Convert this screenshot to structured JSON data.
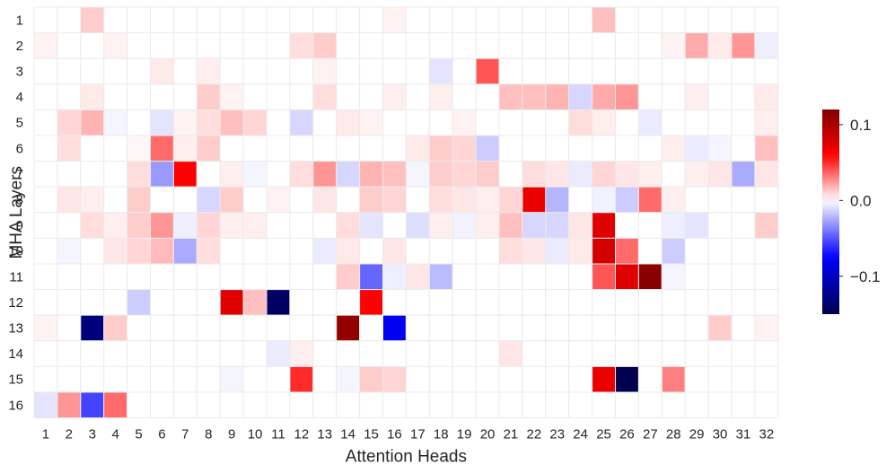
{
  "chart_data": {
    "type": "heatmap",
    "title": "",
    "xlabel": "Attention Heads",
    "ylabel": "MHA Layers",
    "x_categories": [
      "1",
      "2",
      "3",
      "4",
      "5",
      "6",
      "7",
      "8",
      "9",
      "10",
      "11",
      "12",
      "13",
      "14",
      "15",
      "16",
      "17",
      "18",
      "19",
      "20",
      "21",
      "22",
      "23",
      "24",
      "25",
      "26",
      "27",
      "28",
      "29",
      "30",
      "31",
      "32"
    ],
    "y_categories": [
      "1",
      "2",
      "3",
      "4",
      "5",
      "6",
      "7",
      "8",
      "9",
      "10",
      "11",
      "12",
      "13",
      "14",
      "15",
      "16"
    ],
    "colormap": "seismic",
    "colorbar": {
      "vmin": -0.15,
      "vmax": 0.12,
      "ticks": [
        -0.1,
        0.0,
        0.1
      ],
      "tick_labels": [
        "−0.1",
        "0.0",
        "0.1"
      ],
      "position": "right"
    },
    "grid": true,
    "values": [
      [
        0,
        0,
        0.012,
        0,
        0,
        0,
        0,
        0,
        0,
        0,
        0,
        0,
        0,
        0,
        0,
        0.003,
        0,
        0,
        0,
        0,
        0,
        0,
        0,
        0,
        0.015,
        0,
        0,
        0,
        0,
        0,
        0,
        0
      ],
      [
        0.003,
        0,
        0,
        0.003,
        0,
        0,
        0,
        0,
        0,
        0,
        0,
        0.008,
        0.012,
        0,
        0,
        0,
        0,
        0,
        0,
        0,
        0,
        0,
        0,
        0,
        0,
        0,
        0,
        0.003,
        0.02,
        0.005,
        0.025,
        -0.005
      ],
      [
        0,
        0,
        0,
        0,
        0,
        0.005,
        0,
        0.004,
        0,
        0,
        0,
        0,
        0.003,
        0,
        0,
        0,
        0,
        -0.008,
        0,
        0.04,
        0,
        0,
        0,
        0,
        0,
        0,
        0,
        0,
        0,
        0,
        0,
        0
      ],
      [
        0,
        0,
        0.005,
        0,
        0,
        0,
        0,
        0.012,
        0.003,
        0,
        0,
        0,
        0.008,
        0,
        0,
        0.004,
        0,
        0.004,
        0,
        0,
        0.015,
        0.015,
        0.018,
        -0.012,
        0.02,
        0.025,
        0,
        0,
        0.004,
        0,
        0,
        0.005
      ],
      [
        0,
        0.01,
        0.018,
        -0.003,
        0,
        -0.008,
        0.003,
        0.008,
        0.015,
        0.01,
        0,
        -0.012,
        0,
        0.005,
        0.003,
        0,
        0,
        0,
        0.003,
        0,
        0,
        0,
        0,
        0.008,
        0.004,
        0,
        -0.006,
        0,
        0,
        0,
        0,
        0.004
      ],
      [
        0,
        0.008,
        0,
        0,
        0.002,
        0.035,
        0.004,
        0.012,
        0,
        0,
        0,
        0,
        0,
        0,
        0,
        0,
        0.005,
        0.012,
        0.01,
        -0.015,
        0,
        0,
        0,
        0,
        0,
        0,
        0,
        0.004,
        -0.006,
        -0.003,
        0,
        0.015
      ],
      [
        0,
        0,
        0,
        0,
        0.008,
        -0.03,
        0.06,
        0,
        0.004,
        -0.003,
        0,
        0.008,
        0.025,
        -0.012,
        0.018,
        0.015,
        -0.003,
        0.012,
        0.01,
        0.012,
        0,
        0.008,
        0.006,
        -0.006,
        0.01,
        0.006,
        0.004,
        0,
        0.004,
        0.006,
        -0.025,
        0.006
      ],
      [
        0,
        0.006,
        0.004,
        0,
        0.012,
        0,
        0,
        -0.012,
        0.012,
        0,
        0.003,
        0,
        0.006,
        0,
        0.012,
        0.01,
        0,
        0.008,
        0.006,
        0.004,
        0.01,
        0.07,
        -0.022,
        0,
        -0.004,
        -0.015,
        0.035,
        0.004,
        0,
        0,
        0,
        0
      ],
      [
        0,
        0,
        0.008,
        0.004,
        0.012,
        0.025,
        -0.005,
        0.01,
        0.004,
        0.004,
        0,
        0,
        0,
        0.008,
        -0.008,
        0,
        -0.01,
        0.004,
        -0.004,
        0.004,
        0.015,
        -0.012,
        -0.012,
        0.006,
        0.075,
        0,
        0,
        -0.005,
        -0.008,
        0,
        0,
        0.012
      ],
      [
        0,
        -0.003,
        0,
        0.006,
        0.01,
        0.016,
        -0.025,
        0.008,
        0,
        0,
        0,
        0,
        -0.006,
        0.005,
        0,
        0.006,
        0,
        0,
        0,
        0,
        0.008,
        0.006,
        -0.006,
        0.005,
        0.08,
        0.035,
        0,
        -0.015,
        0,
        0,
        0,
        0
      ],
      [
        0,
        0,
        0,
        0,
        0,
        0,
        0,
        0,
        0,
        0,
        0,
        0,
        0,
        0.012,
        -0.045,
        -0.005,
        0.006,
        -0.02,
        0,
        0,
        0,
        0,
        0,
        0,
        0.04,
        0.075,
        0.115,
        -0.003,
        0,
        0,
        0,
        0
      ],
      [
        0,
        0,
        0,
        0,
        -0.015,
        0,
        0,
        0,
        0.075,
        0.015,
        -0.14,
        0,
        0,
        0,
        0.06,
        0,
        0,
        0,
        0,
        0,
        0,
        0,
        0,
        0,
        0,
        0,
        0,
        0,
        0,
        0,
        0,
        0
      ],
      [
        0.003,
        0,
        -0.13,
        0.012,
        0,
        0,
        0,
        0,
        0,
        0,
        0,
        0,
        0,
        0.11,
        0,
        -0.08,
        0,
        0,
        0,
        0,
        0,
        0,
        0,
        0,
        0,
        0,
        0,
        0,
        0,
        0.012,
        0,
        0.003
      ],
      [
        0,
        0,
        0,
        0,
        0,
        0,
        0,
        0,
        0,
        0,
        -0.006,
        0.004,
        0,
        0,
        0,
        0,
        0,
        0,
        0,
        0,
        0.006,
        0,
        0,
        0,
        0,
        0,
        0,
        0,
        0,
        0,
        0,
        0
      ],
      [
        0,
        0,
        0,
        0,
        0,
        0,
        0,
        0,
        -0.003,
        0,
        0,
        0.05,
        0,
        -0.003,
        0.012,
        0.01,
        0,
        0,
        0,
        0,
        0,
        0,
        0,
        0,
        0.07,
        -0.15,
        0,
        0.03,
        0,
        0,
        0,
        0
      ],
      [
        -0.008,
        0.025,
        -0.055,
        0.035,
        0,
        0,
        0,
        0,
        0,
        0,
        0,
        0,
        0,
        0,
        0,
        0,
        0,
        0,
        0,
        0,
        0,
        0,
        0,
        0,
        0,
        0,
        0,
        0,
        0,
        0,
        0,
        0
      ]
    ]
  }
}
